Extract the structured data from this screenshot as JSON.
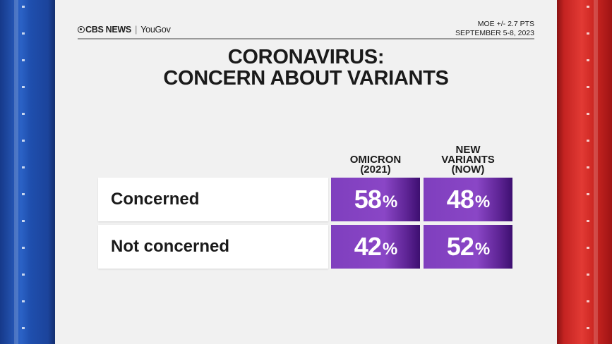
{
  "header": {
    "brand_cbs": "CBS NEWS",
    "brand_sep": "|",
    "brand_yougov": "YouGov",
    "moe": "MOE +/- 2.7 PTS",
    "dates": "SEPTEMBER 5-8, 2023"
  },
  "title_line1": "CORONAVIRUS:",
  "title_line2": "CONCERN ABOUT VARIANTS",
  "colors": {
    "accent_purple": "#8a46c6",
    "left_stripe_blue": "#2b62c6",
    "right_stripe_red": "#e23a34"
  },
  "chart_data": {
    "type": "table",
    "columns": [
      {
        "label_lines": [
          "OMICRON",
          "(2021)"
        ]
      },
      {
        "label_lines": [
          "NEW",
          "VARIANTS",
          "(NOW)"
        ]
      }
    ],
    "rows": [
      {
        "label": "Concerned",
        "values": [
          58,
          48
        ]
      },
      {
        "label": "Not concerned",
        "values": [
          42,
          52
        ]
      }
    ],
    "unit": "%"
  }
}
